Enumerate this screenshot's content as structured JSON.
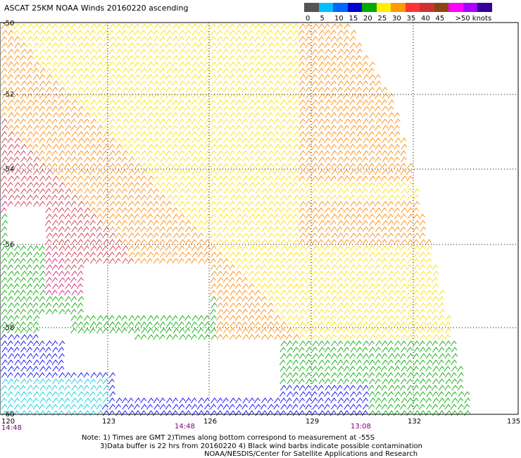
{
  "title": "ASCAT 25KM NOAA Winds 20160220 ascending",
  "legend": {
    "unit_label": ">50 knots",
    "bins": [
      {
        "label": "0",
        "color": "#555555"
      },
      {
        "label": "5",
        "color": "#00bfff"
      },
      {
        "label": "10",
        "color": "#0066ff"
      },
      {
        "label": "15",
        "color": "#0000cc"
      },
      {
        "label": "20",
        "color": "#00aa00"
      },
      {
        "label": "25",
        "color": "#ffee00"
      },
      {
        "label": "30",
        "color": "#ff9900"
      },
      {
        "label": "35",
        "color": "#ff3333"
      },
      {
        "label": "40",
        "color": "#cc3333"
      },
      {
        "label": "45",
        "color": "#8b4513"
      },
      {
        "label": "",
        "color": "#ff00ff"
      },
      {
        "label": "",
        "color": "#aa00ff"
      },
      {
        "label": "",
        "color": "#330099"
      }
    ]
  },
  "map": {
    "lon_ticks": [
      "120",
      "123",
      "126",
      "129",
      "132",
      "135"
    ],
    "lat_ticks": [
      "-50",
      "-52",
      "-54",
      "-56",
      "-58",
      "-60"
    ],
    "time_labels": [
      "14:48",
      "14:48",
      "13:08"
    ]
  },
  "notes": [
    "Note: 1) Times are GMT 2)Times along bottom correspond to measurement at -55S",
    "3)Data buffer is 22 hrs from 20160220 4) Black wind barbs indicate possible contamination",
    "NOAA/NESDIS/Center for Satellite Applications and Research"
  ],
  "colors": {
    "calm": "#00ccdd",
    "light": "#0000ff",
    "moderate": "#00aa00",
    "fresh": "#ffdd00",
    "strong": "#ff8800",
    "gale": "#cc3344",
    "storm": "#cc2277"
  }
}
